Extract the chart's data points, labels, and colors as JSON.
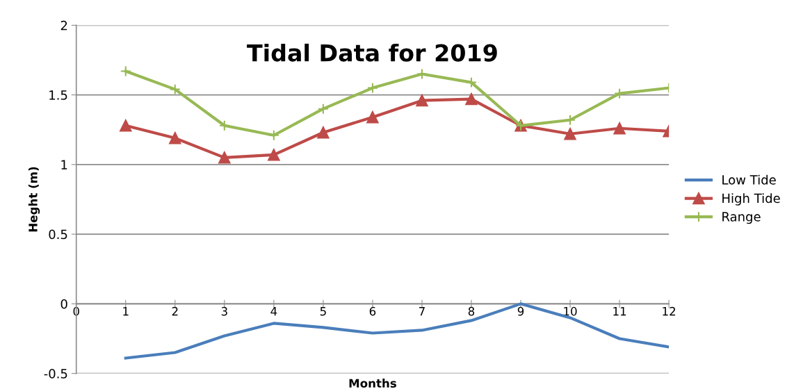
{
  "chart_data": {
    "type": "line",
    "title": "Tidal Data for 2019",
    "xlabel": "Months",
    "ylabel": "Heght (m)",
    "x": [
      1,
      2,
      3,
      4,
      5,
      6,
      7,
      8,
      9,
      10,
      11,
      12
    ],
    "series": [
      {
        "name": "Low Tide",
        "color": "#4a7ebb",
        "marker": "none",
        "values": [
          -0.39,
          -0.35,
          -0.23,
          -0.14,
          -0.17,
          -0.21,
          -0.19,
          -0.12,
          0.0,
          -0.1,
          -0.25,
          -0.31
        ]
      },
      {
        "name": "High Tide",
        "color": "#be4b48",
        "marker": "triangle",
        "values": [
          1.28,
          1.19,
          1.05,
          1.07,
          1.23,
          1.34,
          1.46,
          1.47,
          1.28,
          1.22,
          1.26,
          1.24
        ]
      },
      {
        "name": "Range",
        "color": "#98b954",
        "marker": "cross",
        "values": [
          1.67,
          1.54,
          1.28,
          1.21,
          1.4,
          1.55,
          1.65,
          1.59,
          1.28,
          1.32,
          1.51,
          1.55
        ]
      }
    ],
    "xlim": [
      0,
      12
    ],
    "xticks": [
      0,
      1,
      2,
      3,
      4,
      5,
      6,
      7,
      8,
      9,
      10,
      11,
      12
    ],
    "ylim": [
      -0.5,
      2
    ],
    "yticks": [
      -0.5,
      0,
      0.5,
      1,
      1.5,
      2
    ],
    "grid": "y",
    "legend": "right"
  }
}
